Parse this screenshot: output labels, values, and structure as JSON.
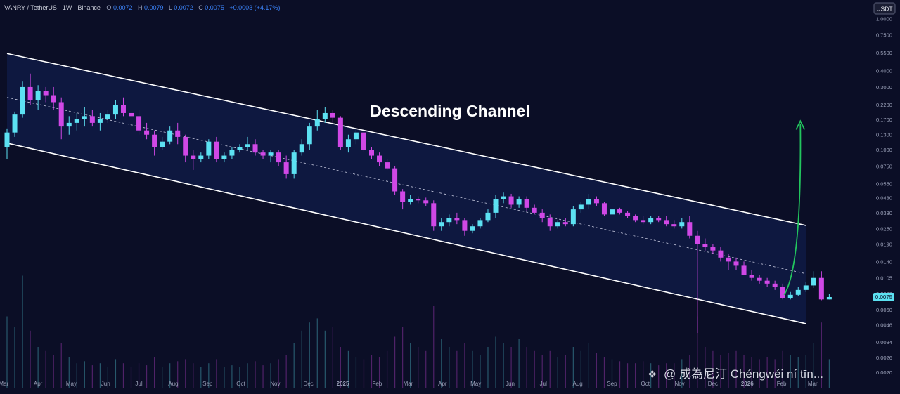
{
  "header": {
    "symbol": "VANRY / TetherUS · 1W · Binance",
    "ohlc": [
      {
        "key": "O",
        "value": "0.0072"
      },
      {
        "key": "H",
        "value": "0.0079"
      },
      {
        "key": "L",
        "value": "0.0072"
      },
      {
        "key": "C",
        "value": "0.0075"
      }
    ],
    "change": "+0.0003 (+4.17%)"
  },
  "currency_badge": "USDT",
  "current_price_label": "0.0075",
  "watermark": "@ 成為尼汀 Chéngwéi ní tīn...",
  "colors": {
    "background": "#0b0e26",
    "channel_fill": "#0f1a45",
    "up": "#5ce1f2",
    "down": "#d048e6",
    "line": "#ffffff",
    "arrow": "#22c55e",
    "muted_text": "#9aa0b8",
    "header_value": "#3b82f6"
  },
  "chart_data": {
    "type": "candlestick",
    "title": "",
    "annotation": "Descending Channel",
    "y_scale": "log",
    "ylim": [
      0.002,
      1.0
    ],
    "y_ticks": [
      "1.0000",
      "0.7500",
      "0.5500",
      "0.4000",
      "0.3000",
      "0.2200",
      "0.1700",
      "0.1300",
      "0.1000",
      "0.0750",
      "0.0550",
      "0.0430",
      "0.0330",
      "0.0250",
      "0.0190",
      "0.0140",
      "0.0105",
      "0.0080",
      "0.0060",
      "0.0046",
      "0.0034",
      "0.0026",
      "0.0020"
    ],
    "x_ticks": [
      "Mar",
      "Apr",
      "May",
      "Jun",
      "Jul",
      "Aug",
      "Sep",
      "Oct",
      "Nov",
      "Dec",
      "2025",
      "Feb",
      "Mar",
      "Apr",
      "May",
      "Jun",
      "Jul",
      "Aug",
      "Sep",
      "Oct",
      "Nov",
      "Dec",
      "2026",
      "Feb",
      "Mar"
    ],
    "x_start": "2024-03-04",
    "interval": "1W",
    "candles": [
      [
        0.105,
        0.145,
        0.085,
        0.135
      ],
      [
        0.135,
        0.195,
        0.125,
        0.185
      ],
      [
        0.185,
        0.33,
        0.175,
        0.3
      ],
      [
        0.3,
        0.38,
        0.22,
        0.24
      ],
      [
        0.24,
        0.31,
        0.2,
        0.28
      ],
      [
        0.28,
        0.3,
        0.23,
        0.26
      ],
      [
        0.26,
        0.3,
        0.2,
        0.23
      ],
      [
        0.23,
        0.25,
        0.12,
        0.15
      ],
      [
        0.15,
        0.18,
        0.13,
        0.16
      ],
      [
        0.16,
        0.19,
        0.14,
        0.17
      ],
      [
        0.17,
        0.21,
        0.15,
        0.18
      ],
      [
        0.18,
        0.2,
        0.15,
        0.16
      ],
      [
        0.16,
        0.19,
        0.14,
        0.17
      ],
      [
        0.17,
        0.2,
        0.16,
        0.185
      ],
      [
        0.185,
        0.24,
        0.17,
        0.22
      ],
      [
        0.22,
        0.25,
        0.18,
        0.19
      ],
      [
        0.19,
        0.21,
        0.17,
        0.18
      ],
      [
        0.18,
        0.2,
        0.13,
        0.14
      ],
      [
        0.14,
        0.16,
        0.12,
        0.13
      ],
      [
        0.13,
        0.14,
        0.09,
        0.105
      ],
      [
        0.105,
        0.125,
        0.1,
        0.115
      ],
      [
        0.115,
        0.15,
        0.11,
        0.14
      ],
      [
        0.14,
        0.16,
        0.11,
        0.125
      ],
      [
        0.125,
        0.13,
        0.08,
        0.09
      ],
      [
        0.09,
        0.1,
        0.07,
        0.085
      ],
      [
        0.085,
        0.095,
        0.08,
        0.09
      ],
      [
        0.09,
        0.12,
        0.085,
        0.115
      ],
      [
        0.115,
        0.125,
        0.08,
        0.085
      ],
      [
        0.085,
        0.095,
        0.08,
        0.09
      ],
      [
        0.09,
        0.105,
        0.085,
        0.1
      ],
      [
        0.1,
        0.11,
        0.095,
        0.105
      ],
      [
        0.105,
        0.125,
        0.1,
        0.11
      ],
      [
        0.11,
        0.12,
        0.09,
        0.095
      ],
      [
        0.095,
        0.1,
        0.085,
        0.09
      ],
      [
        0.09,
        0.1,
        0.08,
        0.095
      ],
      [
        0.095,
        0.1,
        0.075,
        0.08
      ],
      [
        0.08,
        0.09,
        0.06,
        0.065
      ],
      [
        0.065,
        0.1,
        0.06,
        0.095
      ],
      [
        0.095,
        0.12,
        0.09,
        0.11
      ],
      [
        0.11,
        0.16,
        0.1,
        0.15
      ],
      [
        0.15,
        0.2,
        0.14,
        0.17
      ],
      [
        0.17,
        0.21,
        0.16,
        0.19
      ],
      [
        0.19,
        0.2,
        0.16,
        0.175
      ],
      [
        0.175,
        0.18,
        0.1,
        0.105
      ],
      [
        0.105,
        0.13,
        0.095,
        0.12
      ],
      [
        0.12,
        0.145,
        0.11,
        0.135
      ],
      [
        0.135,
        0.14,
        0.095,
        0.1
      ],
      [
        0.1,
        0.105,
        0.085,
        0.09
      ],
      [
        0.09,
        0.095,
        0.075,
        0.08
      ],
      [
        0.08,
        0.085,
        0.07,
        0.072
      ],
      [
        0.072,
        0.075,
        0.045,
        0.048
      ],
      [
        0.048,
        0.05,
        0.035,
        0.04
      ],
      [
        0.04,
        0.045,
        0.038,
        0.042
      ],
      [
        0.042,
        0.044,
        0.039,
        0.041
      ],
      [
        0.041,
        0.043,
        0.037,
        0.039
      ],
      [
        0.039,
        0.041,
        0.024,
        0.026
      ],
      [
        0.026,
        0.03,
        0.024,
        0.028
      ],
      [
        0.028,
        0.032,
        0.026,
        0.03
      ],
      [
        0.03,
        0.033,
        0.027,
        0.029
      ],
      [
        0.029,
        0.03,
        0.022,
        0.024
      ],
      [
        0.024,
        0.027,
        0.023,
        0.026
      ],
      [
        0.026,
        0.03,
        0.025,
        0.029
      ],
      [
        0.029,
        0.035,
        0.028,
        0.033
      ],
      [
        0.033,
        0.045,
        0.03,
        0.042
      ],
      [
        0.042,
        0.047,
        0.039,
        0.044
      ],
      [
        0.044,
        0.046,
        0.036,
        0.038
      ],
      [
        0.038,
        0.044,
        0.036,
        0.042
      ],
      [
        0.042,
        0.044,
        0.034,
        0.036
      ],
      [
        0.036,
        0.038,
        0.032,
        0.033
      ],
      [
        0.033,
        0.035,
        0.028,
        0.03
      ],
      [
        0.03,
        0.032,
        0.024,
        0.026
      ],
      [
        0.026,
        0.029,
        0.025,
        0.028
      ],
      [
        0.028,
        0.03,
        0.026,
        0.027
      ],
      [
        0.027,
        0.037,
        0.026,
        0.035
      ],
      [
        0.035,
        0.04,
        0.033,
        0.038
      ],
      [
        0.038,
        0.046,
        0.035,
        0.042
      ],
      [
        0.042,
        0.044,
        0.037,
        0.039
      ],
      [
        0.039,
        0.04,
        0.031,
        0.032
      ],
      [
        0.032,
        0.036,
        0.031,
        0.035
      ],
      [
        0.035,
        0.036,
        0.032,
        0.033
      ],
      [
        0.033,
        0.034,
        0.03,
        0.031
      ],
      [
        0.031,
        0.032,
        0.028,
        0.029
      ],
      [
        0.029,
        0.031,
        0.027,
        0.028
      ],
      [
        0.028,
        0.031,
        0.027,
        0.03
      ],
      [
        0.03,
        0.031,
        0.028,
        0.029
      ],
      [
        0.029,
        0.031,
        0.026,
        0.027
      ],
      [
        0.027,
        0.029,
        0.025,
        0.026
      ],
      [
        0.026,
        0.03,
        0.025,
        0.028
      ],
      [
        0.028,
        0.031,
        0.021,
        0.022
      ],
      [
        0.022,
        0.024,
        0.004,
        0.019
      ],
      [
        0.019,
        0.021,
        0.017,
        0.018
      ],
      [
        0.018,
        0.019,
        0.016,
        0.017
      ],
      [
        0.017,
        0.018,
        0.014,
        0.015
      ],
      [
        0.015,
        0.016,
        0.012,
        0.014
      ],
      [
        0.014,
        0.015,
        0.012,
        0.013
      ],
      [
        0.013,
        0.014,
        0.011,
        0.011
      ],
      [
        0.011,
        0.012,
        0.01,
        0.0105
      ],
      [
        0.0105,
        0.011,
        0.0095,
        0.01
      ],
      [
        0.01,
        0.0105,
        0.009,
        0.0095
      ],
      [
        0.0095,
        0.01,
        0.0085,
        0.009
      ],
      [
        0.009,
        0.0095,
        0.0072,
        0.0074
      ],
      [
        0.0074,
        0.0082,
        0.0072,
        0.0078
      ],
      [
        0.0078,
        0.009,
        0.0076,
        0.0085
      ],
      [
        0.0085,
        0.0098,
        0.0082,
        0.0092
      ],
      [
        0.0092,
        0.0118,
        0.0088,
        0.0105
      ],
      [
        0.0105,
        0.0118,
        0.0071,
        0.0072
      ],
      [
        0.0072,
        0.0079,
        0.0072,
        0.0075
      ]
    ],
    "volume": [
      0.35,
      0.3,
      0.55,
      0.28,
      0.2,
      0.18,
      0.16,
      0.22,
      0.15,
      0.12,
      0.13,
      0.11,
      0.12,
      0.1,
      0.14,
      0.12,
      0.1,
      0.12,
      0.11,
      0.15,
      0.1,
      0.12,
      0.13,
      0.14,
      0.12,
      0.1,
      0.12,
      0.14,
      0.1,
      0.11,
      0.1,
      0.12,
      0.13,
      0.11,
      0.12,
      0.14,
      0.16,
      0.22,
      0.28,
      0.32,
      0.34,
      0.28,
      0.3,
      0.2,
      0.18,
      0.15,
      0.14,
      0.16,
      0.15,
      0.18,
      0.25,
      0.3,
      0.22,
      0.2,
      0.18,
      0.4,
      0.24,
      0.2,
      0.18,
      0.22,
      0.18,
      0.16,
      0.2,
      0.25,
      0.22,
      0.2,
      0.24,
      0.2,
      0.18,
      0.16,
      0.18,
      0.15,
      0.16,
      0.2,
      0.18,
      0.22,
      0.17,
      0.15,
      0.14,
      0.13,
      0.12,
      0.12,
      0.13,
      0.12,
      0.11,
      0.12,
      0.12,
      0.14,
      0.16,
      0.35,
      0.2,
      0.18,
      0.16,
      0.17,
      0.18,
      0.16,
      0.15,
      0.14,
      0.15,
      0.14,
      0.18,
      0.16,
      0.15,
      0.16,
      0.22,
      0.32,
      0.14
    ],
    "channel": {
      "upper": [
        [
          "2024-03-04",
          0.54
        ],
        [
          "2026-02-23",
          0.0264
        ]
      ],
      "lower": [
        [
          "2024-03-04",
          0.112
        ],
        [
          "2026-02-23",
          0.0047
        ]
      ],
      "middle": [
        [
          "2024-03-04",
          0.25
        ],
        [
          "2026-02-23",
          0.0113
        ]
      ]
    },
    "projection": {
      "type": "arrow",
      "from": [
        "2026-02-02",
        0.0078
      ],
      "to": [
        "2026-02-23",
        0.165
      ]
    }
  }
}
